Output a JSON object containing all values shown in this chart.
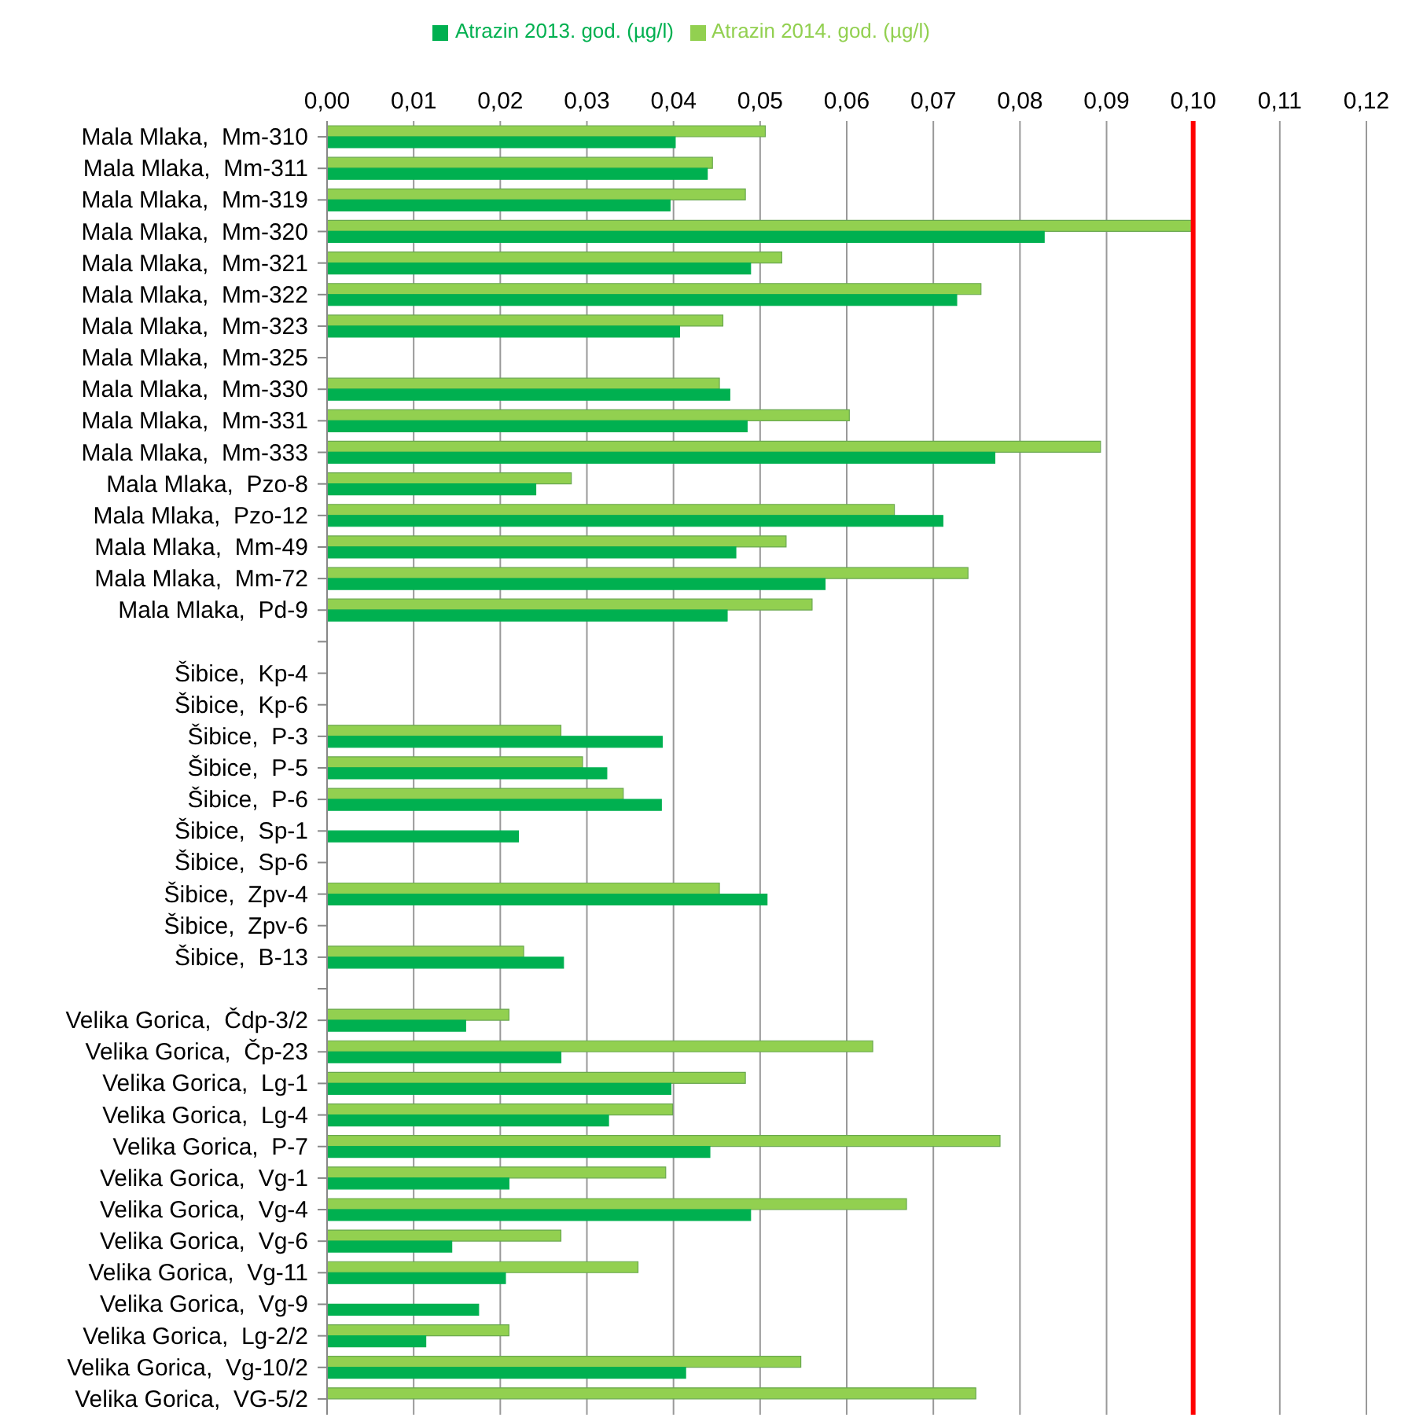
{
  "chart_data": {
    "type": "bar",
    "orientation": "horizontal",
    "categories": [
      "Mala Mlaka,  Mm-310",
      "Mala Mlaka,  Mm-311",
      "Mala Mlaka,  Mm-319",
      "Mala Mlaka,  Mm-320",
      "Mala Mlaka,  Mm-321",
      "Mala Mlaka,  Mm-322",
      "Mala Mlaka,  Mm-323",
      "Mala Mlaka,  Mm-325",
      "Mala Mlaka,  Mm-330",
      "Mala Mlaka,  Mm-331",
      "Mala Mlaka,  Mm-333",
      "Mala Mlaka,  Pzo-8",
      "Mala Mlaka,  Pzo-12",
      "Mala Mlaka,  Mm-49",
      "Mala Mlaka,  Mm-72",
      "Mala Mlaka,  Pd-9",
      null,
      "Šibice,  Kp-4",
      "Šibice,  Kp-6",
      "Šibice,  P-3",
      "Šibice,  P-5",
      "Šibice,  P-6",
      "Šibice,  Sp-1",
      "Šibice,  Sp-6",
      "Šibice,  Zpv-4",
      "Šibice,  Zpv-6",
      "Šibice,  B-13",
      null,
      "Velika Gorica,  Čdp-3/2",
      "Velika Gorica,  Čp-23",
      "Velika Gorica,  Lg-1",
      "Velika Gorica,  Lg-4",
      "Velika Gorica,  P-7",
      "Velika Gorica,  Vg-1",
      "Velika Gorica,  Vg-4",
      "Velika Gorica,  Vg-6",
      "Velika Gorica,  Vg-11",
      "Velika Gorica,  Vg-9",
      "Velika Gorica,  Lg-2/2",
      "Velika Gorica,  Vg-10/2",
      "Velika Gorica,  VG-5/2"
    ],
    "series": [
      {
        "name": "Atrazin 2014. god. (µg/l)",
        "color": "#92d050",
        "values": [
          0.0506,
          0.0445,
          0.0483,
          0.0998,
          0.0525,
          0.0755,
          0.0457,
          null,
          0.0453,
          0.0603,
          0.0893,
          0.0282,
          0.0655,
          0.053,
          0.074,
          0.056,
          null,
          null,
          null,
          0.027,
          0.0295,
          0.0342,
          null,
          null,
          0.0453,
          null,
          0.0227,
          null,
          0.021,
          0.063,
          0.0483,
          0.0399,
          0.0777,
          0.0391,
          0.0669,
          0.027,
          0.0359,
          null,
          0.021,
          0.0547,
          0.0749
        ]
      },
      {
        "name": "Atrazin 2013. god. (µg/l)",
        "color": "#00b050",
        "values": [
          0.0402,
          0.0439,
          0.0396,
          0.0828,
          0.0489,
          0.0727,
          0.0407,
          null,
          0.0465,
          0.0485,
          0.0771,
          0.0241,
          0.0711,
          0.0472,
          0.0575,
          0.0462,
          null,
          null,
          null,
          0.0387,
          0.0323,
          0.0386,
          0.0221,
          null,
          0.0508,
          null,
          0.0273,
          null,
          0.016,
          0.027,
          0.0397,
          0.0325,
          0.0442,
          0.021,
          0.0489,
          0.0144,
          0.0206,
          0.0175,
          0.0114,
          0.0414,
          null
        ]
      }
    ],
    "xlim": [
      0,
      0.12
    ],
    "xticks": [
      {
        "value": 0,
        "label": "0,00"
      },
      {
        "value": 0.01,
        "label": "0,01"
      },
      {
        "value": 0.02,
        "label": "0,02"
      },
      {
        "value": 0.03,
        "label": "0,03"
      },
      {
        "value": 0.04,
        "label": "0,04"
      },
      {
        "value": 0.05,
        "label": "0,05"
      },
      {
        "value": 0.06,
        "label": "0,06"
      },
      {
        "value": 0.07,
        "label": "0,07"
      },
      {
        "value": 0.08,
        "label": "0,08"
      },
      {
        "value": 0.09,
        "label": "0,09"
      },
      {
        "value": 0.1,
        "label": "0,10"
      },
      {
        "value": 0.11,
        "label": "0,11"
      },
      {
        "value": 0.12,
        "label": "0,12"
      }
    ],
    "ref_lines": [
      {
        "axis": "x",
        "value": 0.1,
        "color": "#ff0000"
      }
    ],
    "grid": "x",
    "legend": "top"
  }
}
